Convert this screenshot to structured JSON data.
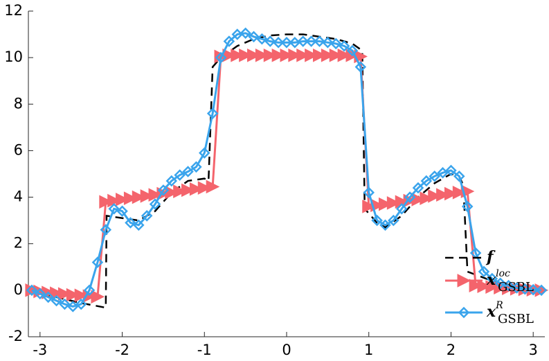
{
  "chart_data": {
    "type": "line",
    "xlim": [
      -3.1416,
      3.1416
    ],
    "ylim": [
      -2,
      12
    ],
    "xticks": [
      -3,
      -2,
      -1,
      0,
      1,
      2,
      3
    ],
    "yticks": [
      -2,
      0,
      2,
      4,
      6,
      8,
      10,
      12
    ],
    "legend": "southeast",
    "x": [
      -3.1,
      -3.0,
      -2.9,
      -2.8,
      -2.7,
      -2.6,
      -2.5,
      -2.4,
      -2.3,
      -2.2,
      -2.1,
      -2.0,
      -1.9,
      -1.8,
      -1.7,
      -1.6,
      -1.5,
      -1.4,
      -1.3,
      -1.2,
      -1.1,
      -1.0,
      -0.9,
      -0.8,
      -0.7,
      -0.6,
      -0.5,
      -0.4,
      -0.3,
      -0.2,
      -0.1,
      0,
      0.1,
      0.2,
      0.3,
      0.4,
      0.5,
      0.6,
      0.7,
      0.8,
      0.9,
      1.0,
      1.1,
      1.2,
      1.3,
      1.4,
      1.5,
      1.6,
      1.7,
      1.8,
      1.9,
      2.0,
      2.1,
      2.2,
      2.3,
      2.4,
      2.5,
      2.6,
      2.7,
      2.8,
      2.9,
      3.0,
      3.1
    ],
    "series": [
      {
        "name": "f",
        "color": "#000000",
        "dash": true,
        "marker": "none",
        "x": [
          -3.1416,
          -2.8,
          -2.5,
          -2.2,
          -2.19,
          -2.0,
          -1.8,
          -1.6,
          -1.4,
          -1.2,
          -1.0,
          -0.95,
          -0.9,
          -0.8,
          -0.6,
          -0.4,
          -0.2,
          0,
          0.2,
          0.4,
          0.6,
          0.8,
          0.92,
          0.95,
          1.1,
          1.2,
          1.4,
          1.6,
          1.8,
          2.0,
          2.1,
          2.15,
          2.2,
          2.5,
          2.8,
          3.1416
        ],
        "values": [
          0,
          -0.3,
          -0.55,
          -0.75,
          3.2,
          3.1,
          3.0,
          3.4,
          4.2,
          4.7,
          4.8,
          4.7,
          9.6,
          10.0,
          10.5,
          10.8,
          10.95,
          11.0,
          11.0,
          10.9,
          10.8,
          10.6,
          10.3,
          3.5,
          2.9,
          2.7,
          3.2,
          4.0,
          4.6,
          5.0,
          4.9,
          4.5,
          0.8,
          0.4,
          0.15,
          0
        ]
      },
      {
        "name": "x",
        "superscript": "loc",
        "subscript": "GSBL",
        "color": "#f4646c",
        "marker": "triangle",
        "values": [
          0.0,
          -0.05,
          -0.1,
          -0.13,
          -0.16,
          -0.2,
          -0.22,
          -0.25,
          -0.28,
          3.8,
          3.85,
          3.9,
          3.95,
          4.0,
          4.05,
          4.1,
          4.15,
          4.2,
          4.25,
          4.3,
          4.35,
          4.4,
          4.45,
          10.05,
          10.1,
          10.1,
          10.1,
          10.1,
          10.1,
          10.1,
          10.1,
          10.1,
          10.1,
          10.1,
          10.1,
          10.1,
          10.1,
          10.1,
          10.1,
          10.1,
          10.05,
          3.6,
          3.65,
          3.7,
          3.75,
          3.8,
          3.85,
          3.9,
          3.95,
          4.05,
          4.1,
          4.15,
          4.2,
          4.25,
          0.2,
          0.17,
          0.14,
          0.11,
          0.08,
          0.06,
          0.04,
          0.02,
          0.0
        ]
      },
      {
        "name": "x",
        "superscript": "R",
        "subscript": "GSBL",
        "color": "#3aa4ec",
        "marker": "diamond",
        "values": [
          0.0,
          -0.15,
          -0.3,
          -0.45,
          -0.6,
          -0.7,
          -0.6,
          0.0,
          1.2,
          2.6,
          3.5,
          3.4,
          2.9,
          2.8,
          3.2,
          3.7,
          4.3,
          4.7,
          4.95,
          5.1,
          5.3,
          5.9,
          7.6,
          10.0,
          10.7,
          11.0,
          11.05,
          10.9,
          10.8,
          10.7,
          10.65,
          10.65,
          10.65,
          10.7,
          10.7,
          10.7,
          10.65,
          10.6,
          10.5,
          10.3,
          9.6,
          4.2,
          3.0,
          2.8,
          3.0,
          3.5,
          4.0,
          4.4,
          4.7,
          4.9,
          5.05,
          5.15,
          4.9,
          3.6,
          1.6,
          0.8,
          0.5,
          0.3,
          0.2,
          0.1,
          0.05,
          0.02,
          0.0
        ]
      }
    ]
  }
}
